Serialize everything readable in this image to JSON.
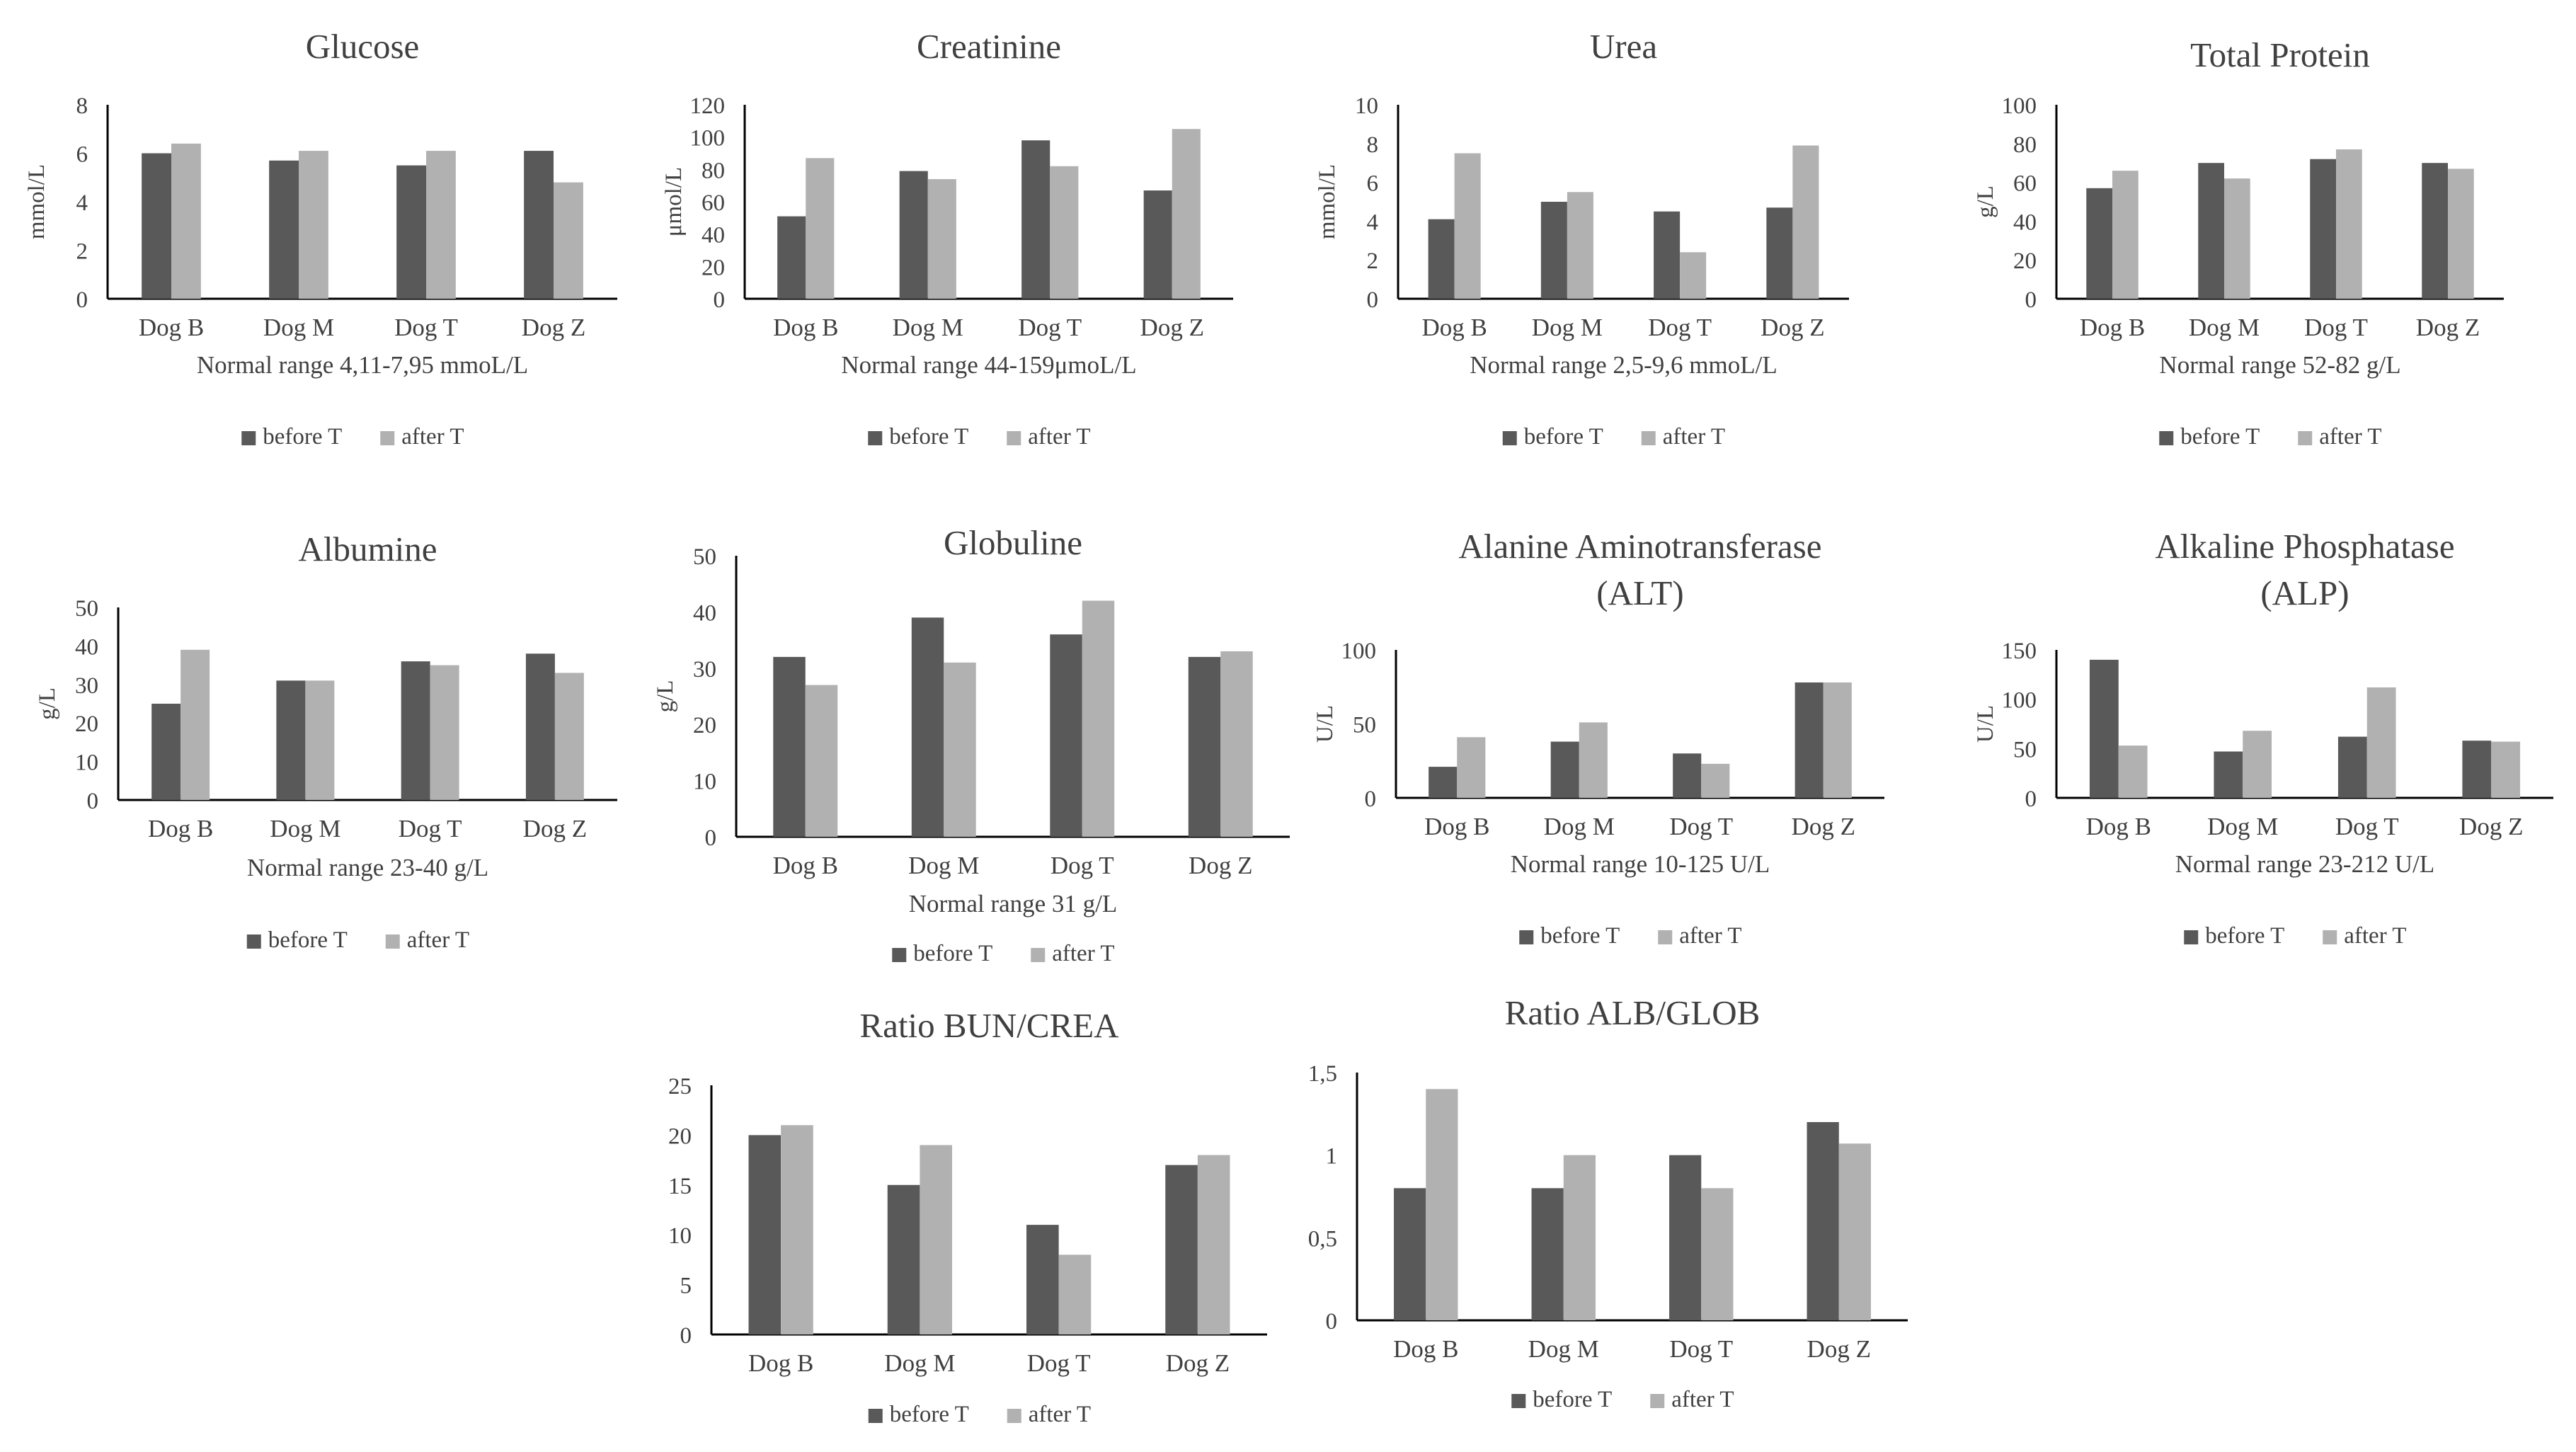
{
  "colors": {
    "before": "#595959",
    "after": "#b1b1b1",
    "axis": "#000000",
    "text": "#404040"
  },
  "chart_data": [
    {
      "type": "bar",
      "title": [
        "Glucose"
      ],
      "ylabel": "mmol/L",
      "xlabel": "Normal  range 4,11-7,95  mmoL/L",
      "categories": [
        "Dog B",
        "Dog M",
        "Dog T",
        "Dog Z"
      ],
      "series": [
        {
          "name": "before T",
          "values": [
            6.0,
            5.7,
            5.5,
            6.1
          ]
        },
        {
          "name": "after T",
          "values": [
            6.4,
            6.1,
            6.1,
            4.8
          ]
        }
      ],
      "ylim": [
        0,
        8
      ],
      "yticks": [
        "0",
        "2",
        "4",
        "6",
        "8"
      ],
      "legend": "bottom",
      "grid": false
    },
    {
      "type": "bar",
      "title": [
        "Creatinine"
      ],
      "ylabel": "μmol/L",
      "xlabel": "Normal  range 44-159μmoL/L",
      "categories": [
        "Dog B",
        "Dog M",
        "Dog T",
        "Dog Z"
      ],
      "series": [
        {
          "name": "before T",
          "values": [
            51,
            79,
            98,
            67
          ]
        },
        {
          "name": "after T",
          "values": [
            87,
            74,
            82,
            105
          ]
        }
      ],
      "ylim": [
        0,
        120
      ],
      "yticks": [
        "0",
        "20",
        "40",
        "60",
        "80",
        "100",
        "120"
      ],
      "legend": "bottom",
      "grid": false
    },
    {
      "type": "bar",
      "title": [
        "Urea"
      ],
      "ylabel": "mmol/L",
      "xlabel": "Normal  range 2,5-9,6  mmoL/L",
      "categories": [
        "Dog B",
        "Dog M",
        "Dog T",
        "Dog Z"
      ],
      "series": [
        {
          "name": "before T",
          "values": [
            4.1,
            5.0,
            4.5,
            4.7
          ]
        },
        {
          "name": "after T",
          "values": [
            7.5,
            5.5,
            2.4,
            7.9
          ]
        }
      ],
      "ylim": [
        0,
        10
      ],
      "yticks": [
        "0",
        "2",
        "4",
        "6",
        "8",
        "10"
      ],
      "legend": "bottom",
      "grid": false
    },
    {
      "type": "bar",
      "title": [
        "Total Protein"
      ],
      "ylabel": "g/L",
      "xlabel": "Normal  range 52-82  g/L",
      "categories": [
        "Dog B",
        "Dog M",
        "Dog T",
        "Dog Z"
      ],
      "series": [
        {
          "name": "before T",
          "values": [
            57,
            70,
            72,
            70
          ]
        },
        {
          "name": "after T",
          "values": [
            66,
            62,
            77,
            67
          ]
        }
      ],
      "ylim": [
        0,
        100
      ],
      "yticks": [
        "0",
        "20",
        "40",
        "60",
        "80",
        "100"
      ],
      "legend": "bottom",
      "grid": false
    },
    {
      "type": "bar",
      "title": [
        "Albumine"
      ],
      "ylabel": "g/L",
      "xlabel": "Normal  range 23-40  g/L",
      "categories": [
        "Dog B",
        "Dog M",
        "Dog T",
        "Dog Z"
      ],
      "series": [
        {
          "name": "before T",
          "values": [
            25,
            31,
            36,
            38
          ]
        },
        {
          "name": "after T",
          "values": [
            39,
            31,
            35,
            33
          ]
        }
      ],
      "ylim": [
        0,
        50
      ],
      "yticks": [
        "0",
        "10",
        "20",
        "30",
        "40",
        "50"
      ],
      "legend": "bottom",
      "grid": false
    },
    {
      "type": "bar",
      "title": [
        "Globuline"
      ],
      "ylabel": "g/L",
      "xlabel": "Normal  range 31  g/L",
      "categories": [
        "Dog B",
        "Dog M",
        "Dog T",
        "Dog Z"
      ],
      "series": [
        {
          "name": "before T",
          "values": [
            32,
            39,
            36,
            32
          ]
        },
        {
          "name": "after T",
          "values": [
            27,
            31,
            42,
            33
          ]
        }
      ],
      "ylim": [
        0,
        50
      ],
      "yticks": [
        "0",
        "10",
        "20",
        "30",
        "40",
        "50"
      ],
      "legend": "bottom",
      "grid": false
    },
    {
      "type": "bar",
      "title": [
        "Alanine  Aminotransferase",
        "(ALT)"
      ],
      "ylabel": "U/L",
      "xlabel": "Normal  range 10-125  U/L",
      "categories": [
        "Dog B",
        "Dog M",
        "Dog T",
        "Dog Z"
      ],
      "series": [
        {
          "name": "before T",
          "values": [
            21,
            38,
            30,
            78
          ]
        },
        {
          "name": "after T",
          "values": [
            41,
            51,
            23,
            78
          ]
        }
      ],
      "ylim": [
        0,
        100
      ],
      "yticks": [
        "0",
        "50",
        "100"
      ],
      "legend": "bottom",
      "grid": false
    },
    {
      "type": "bar",
      "title": [
        "Alkaline  Phosphatase",
        "(ALP)"
      ],
      "ylabel": "U/L",
      "xlabel": "Normal  range 23-212  U/L",
      "categories": [
        "Dog B",
        "Dog M",
        "Dog T",
        "Dog Z"
      ],
      "series": [
        {
          "name": "before T",
          "values": [
            140,
            47,
            62,
            58
          ]
        },
        {
          "name": "after T",
          "values": [
            53,
            68,
            112,
            57
          ]
        }
      ],
      "ylim": [
        0,
        150
      ],
      "yticks": [
        "0",
        "50",
        "100",
        "150"
      ],
      "legend": "bottom",
      "grid": false
    },
    {
      "type": "bar",
      "title": [
        "Ratio BUN/CREA"
      ],
      "ylabel": "",
      "xlabel": "",
      "categories": [
        "Dog B",
        "Dog M",
        "Dog T",
        "Dog Z"
      ],
      "series": [
        {
          "name": "before T",
          "values": [
            20,
            15,
            11,
            17
          ]
        },
        {
          "name": "after T",
          "values": [
            21,
            19,
            8,
            18
          ]
        }
      ],
      "ylim": [
        0,
        25
      ],
      "yticks": [
        "0",
        "5",
        "10",
        "15",
        "20",
        "25"
      ],
      "legend": "bottom",
      "grid": false
    },
    {
      "type": "bar",
      "title": [
        "Ratio ALB/GLOB"
      ],
      "ylabel": "",
      "xlabel": "",
      "categories": [
        "Dog B",
        "Dog M",
        "Dog T",
        "Dog Z"
      ],
      "series": [
        {
          "name": "before T",
          "values": [
            0.8,
            0.8,
            1.0,
            1.2
          ]
        },
        {
          "name": "after T",
          "values": [
            1.4,
            1.0,
            0.8,
            1.07
          ]
        }
      ],
      "ylim": [
        0,
        1.5
      ],
      "yticks": [
        "0",
        "0,5",
        "1",
        "1,5"
      ],
      "legend": "bottom",
      "grid": false
    }
  ]
}
